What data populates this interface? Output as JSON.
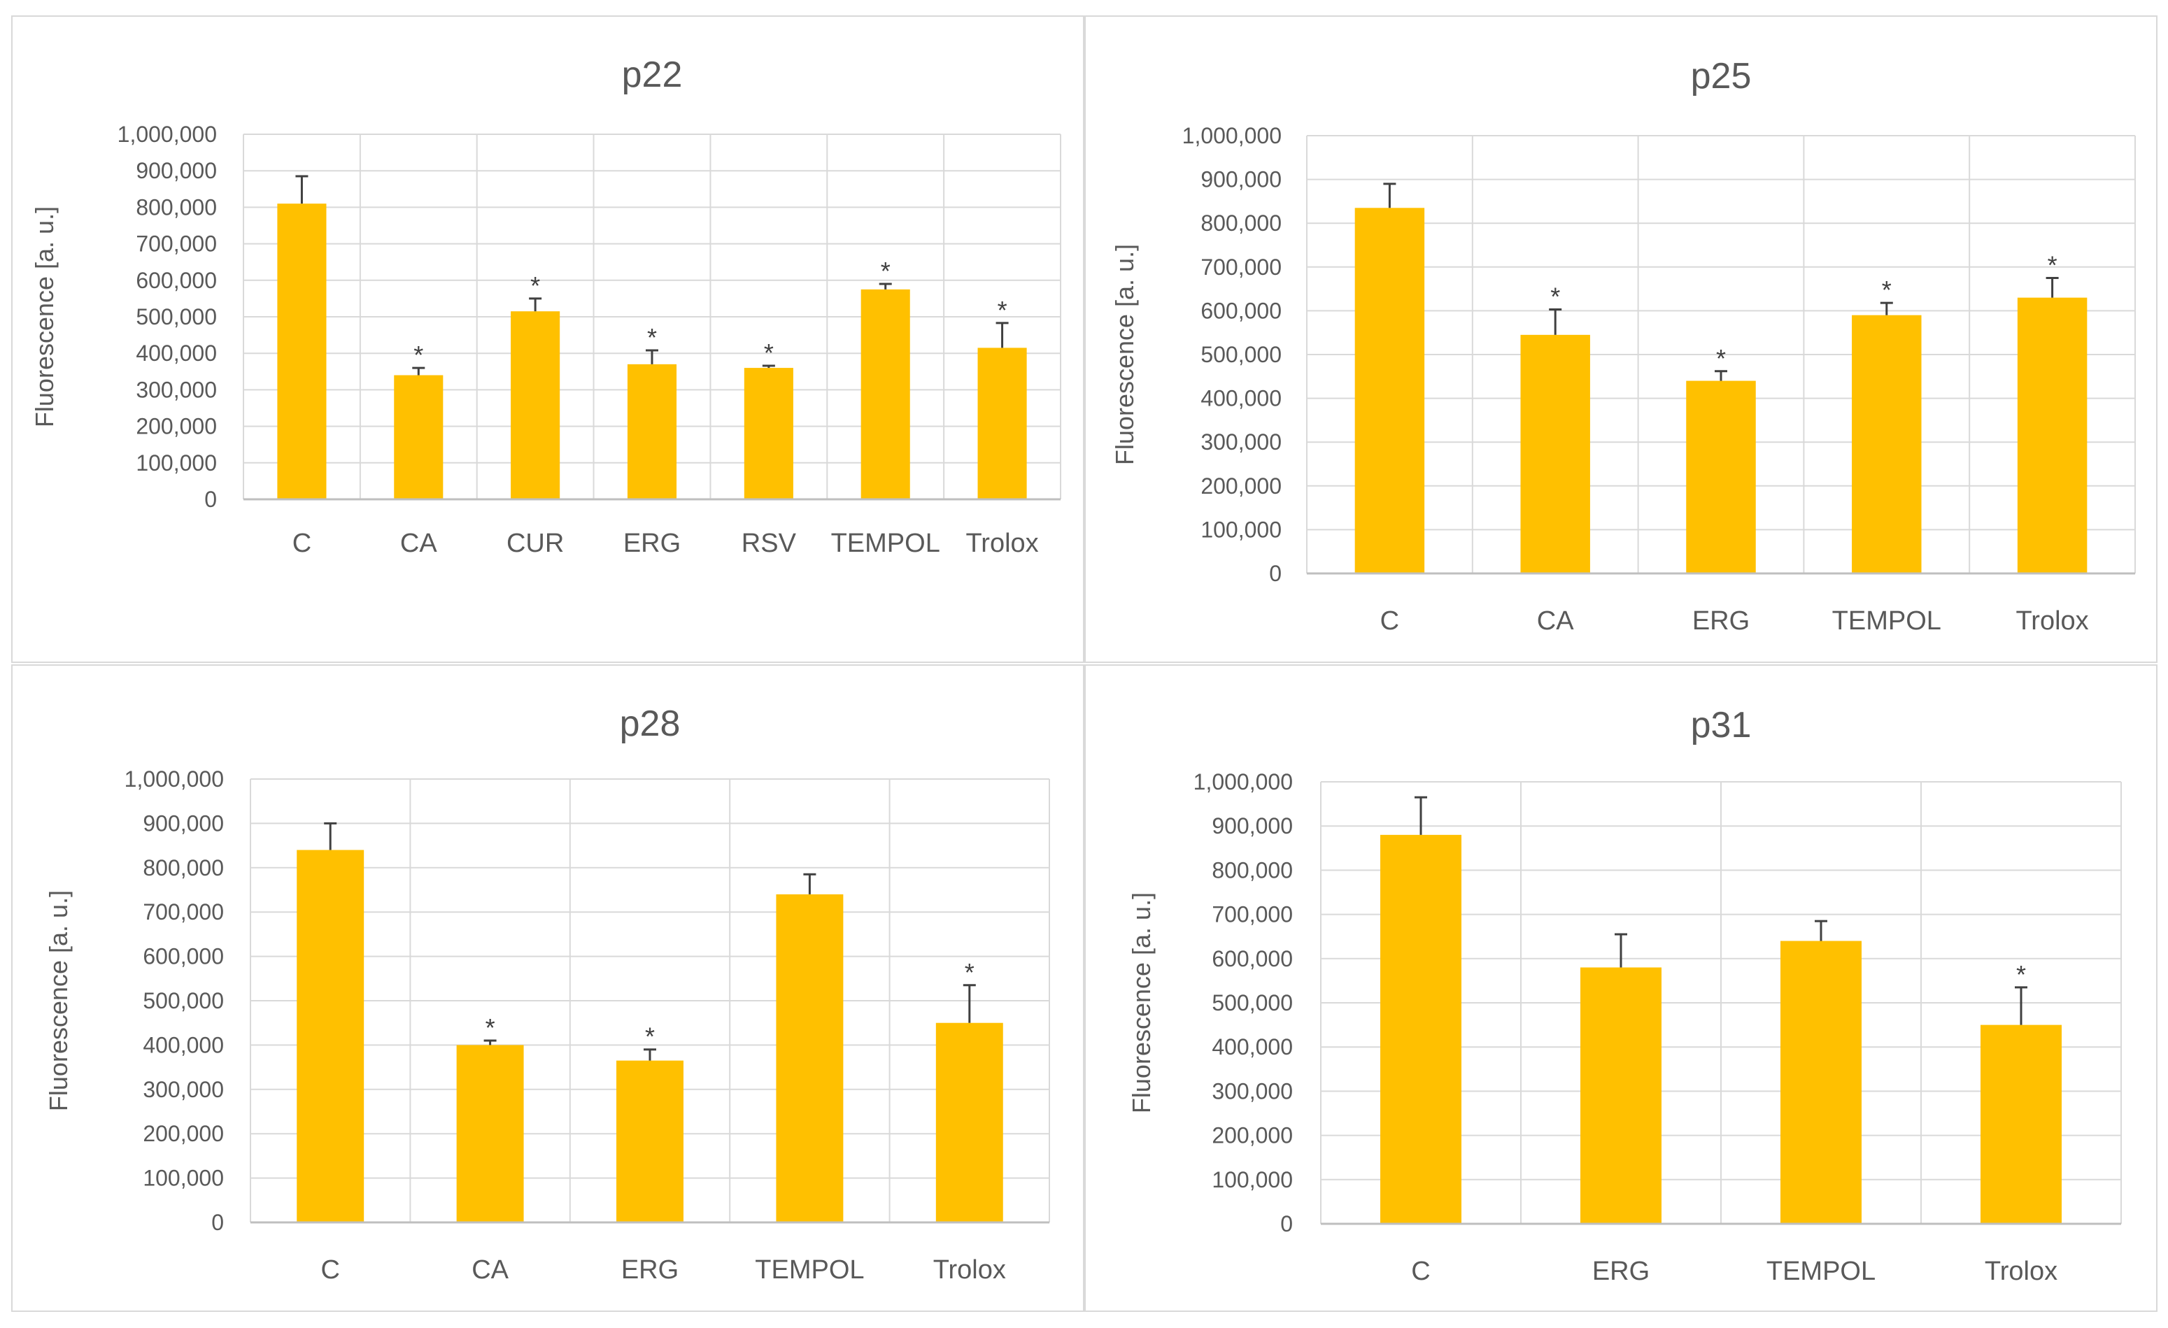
{
  "colors": {
    "bar": "#FFC000",
    "grid": "#D9D9D9",
    "axis": "#BFBFBF",
    "error": "#404040",
    "text": "#595959"
  },
  "chart_data": [
    {
      "type": "bar",
      "title": "p22",
      "xlabel": "",
      "ylabel": "Fluorescence [a. u.]",
      "ylim": [
        0,
        1000000
      ],
      "yticks": [
        "0",
        "100,000",
        "200,000",
        "300,000",
        "400,000",
        "500,000",
        "600,000",
        "700,000",
        "800,000",
        "900,000",
        "1,000,000"
      ],
      "categories": [
        "C",
        "CA",
        "CUR",
        "ERG",
        "RSV",
        "TEMPOL",
        "Trolox"
      ],
      "values": [
        810000,
        340000,
        515000,
        370000,
        360000,
        575000,
        415000
      ],
      "errors": [
        75000,
        20000,
        35000,
        38000,
        6000,
        15000,
        68000
      ],
      "significance": [
        "",
        "*",
        "*",
        "*",
        "*",
        "*",
        "*"
      ]
    },
    {
      "type": "bar",
      "title": "p25",
      "xlabel": "",
      "ylabel": "Fluorescence [a. u.]",
      "ylim": [
        0,
        1000000
      ],
      "yticks": [
        "0",
        "100,000",
        "200,000",
        "300,000",
        "400,000",
        "500,000",
        "600,000",
        "700,000",
        "800,000",
        "900,000",
        "1,000,000"
      ],
      "categories": [
        "C",
        "CA",
        "ERG",
        "TEMPOL",
        "Trolox"
      ],
      "values": [
        835000,
        545000,
        440000,
        590000,
        630000
      ],
      "errors": [
        55000,
        58000,
        22000,
        28000,
        45000
      ],
      "significance": [
        "",
        "*",
        "*",
        "*",
        "*"
      ]
    },
    {
      "type": "bar",
      "title": "p28",
      "xlabel": "",
      "ylabel": "Fluorescence [a. u.]",
      "ylim": [
        0,
        1000000
      ],
      "yticks": [
        "0",
        "100,000",
        "200,000",
        "300,000",
        "400,000",
        "500,000",
        "600,000",
        "700,000",
        "800,000",
        "900,000",
        "1,000,000"
      ],
      "categories": [
        "C",
        "CA",
        "ERG",
        "TEMPOL",
        "Trolox"
      ],
      "values": [
        840000,
        400000,
        365000,
        740000,
        450000
      ],
      "errors": [
        60000,
        10000,
        25000,
        45000,
        85000
      ],
      "significance": [
        "",
        "*",
        "*",
        "",
        "*"
      ]
    },
    {
      "type": "bar",
      "title": "p31",
      "xlabel": "",
      "ylabel": "Fluorescence [a. u.]",
      "ylim": [
        0,
        1000000
      ],
      "yticks": [
        "0",
        "100,000",
        "200,000",
        "300,000",
        "400,000",
        "500,000",
        "600,000",
        "700,000",
        "800,000",
        "900,000",
        "1,000,000"
      ],
      "categories": [
        "C",
        "ERG",
        "TEMPOL",
        "Trolox"
      ],
      "values": [
        880000,
        580000,
        640000,
        450000
      ],
      "errors": [
        85000,
        75000,
        45000,
        85000
      ],
      "significance": [
        "",
        "",
        "",
        "*"
      ]
    }
  ]
}
